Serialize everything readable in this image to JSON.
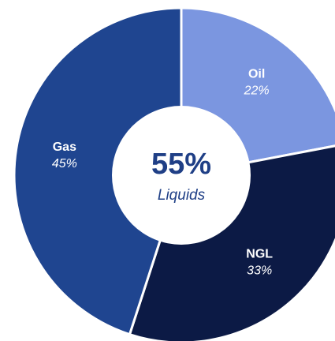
{
  "chart_data": {
    "type": "donut",
    "categories": [
      "Oil",
      "NGL",
      "Gas"
    ],
    "values": [
      22,
      33,
      45
    ],
    "value_labels": [
      "22%",
      "33%",
      "45%"
    ],
    "colors": [
      "#7b96e0",
      "#0c1a45",
      "#1f4590"
    ],
    "center_label": "55%",
    "center_sublabel": "Liquids"
  }
}
